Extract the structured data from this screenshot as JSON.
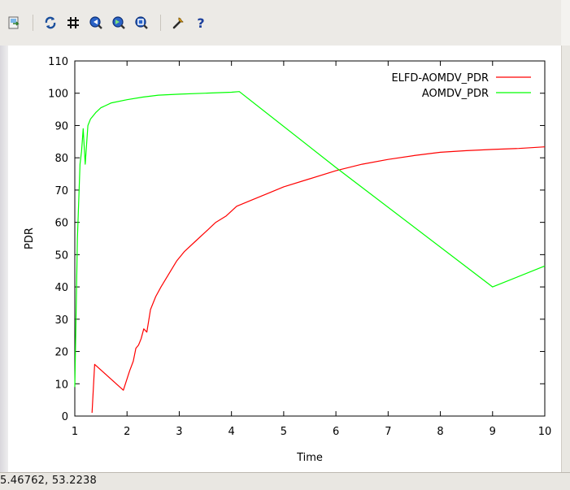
{
  "toolbar": {
    "buttons": [
      {
        "icon": "export-icon"
      },
      {
        "icon": "replot-icon"
      },
      {
        "icon": "grid-icon"
      },
      {
        "icon": "zoom-previous-icon"
      },
      {
        "icon": "zoom-next-icon"
      },
      {
        "icon": "unzoom-icon"
      },
      {
        "icon": "options-wrench-icon"
      },
      {
        "icon": "help-icon"
      }
    ]
  },
  "status": {
    "coordinates": "5.46762,  53.2238"
  },
  "colors": {
    "elfd": "#ff0000",
    "aomdv": "#00ff00",
    "axes": "#000000"
  },
  "chart_data": {
    "type": "line",
    "title": "",
    "xlabel": "Time",
    "ylabel": "PDR",
    "xlim": [
      1,
      10
    ],
    "ylim": [
      0,
      110
    ],
    "xticks": [
      "1",
      "2",
      "3",
      "4",
      "5",
      "6",
      "7",
      "8",
      "9",
      "10"
    ],
    "yticks": [
      "0",
      "10",
      "20",
      "30",
      "40",
      "50",
      "60",
      "70",
      "80",
      "90",
      "100",
      "110"
    ],
    "legend_position": "top-right",
    "grid": false,
    "series": [
      {
        "name": "ELFD-AOMDV_PDR",
        "color": "#ff0000",
        "x": [
          1.33,
          1.38,
          1.93,
          2.05,
          2.12,
          2.17,
          2.22,
          2.27,
          2.32,
          2.38,
          2.45,
          2.55,
          2.65,
          2.8,
          2.95,
          3.1,
          3.3,
          3.5,
          3.7,
          3.9,
          4.1,
          4.4,
          4.7,
          5.0,
          5.5,
          6.0,
          6.5,
          7.0,
          7.5,
          8.0,
          8.5,
          9.0,
          9.5,
          10.0
        ],
        "y": [
          1,
          16,
          8,
          14,
          17,
          21,
          22,
          24,
          27,
          26,
          33,
          37,
          40,
          44,
          48,
          51,
          54,
          57,
          60,
          62,
          65,
          67,
          69,
          71,
          73.5,
          76,
          78,
          79.5,
          80.7,
          81.7,
          82.2,
          82.6,
          82.9,
          83.4
        ]
      },
      {
        "name": "AOMDV_PDR",
        "color": "#00ff00",
        "x": [
          1.0,
          1.05,
          1.1,
          1.13,
          1.16,
          1.2,
          1.25,
          1.3,
          1.4,
          1.5,
          1.7,
          2.0,
          2.3,
          2.6,
          3.0,
          3.5,
          4.0,
          4.15,
          6.0,
          9.0,
          10.0
        ],
        "y": [
          9,
          55,
          78,
          82,
          89,
          78,
          90,
          92,
          94,
          95.5,
          97,
          98,
          98.8,
          99.4,
          99.7,
          100,
          100.3,
          100.5,
          77,
          40,
          46.5
        ]
      }
    ]
  }
}
